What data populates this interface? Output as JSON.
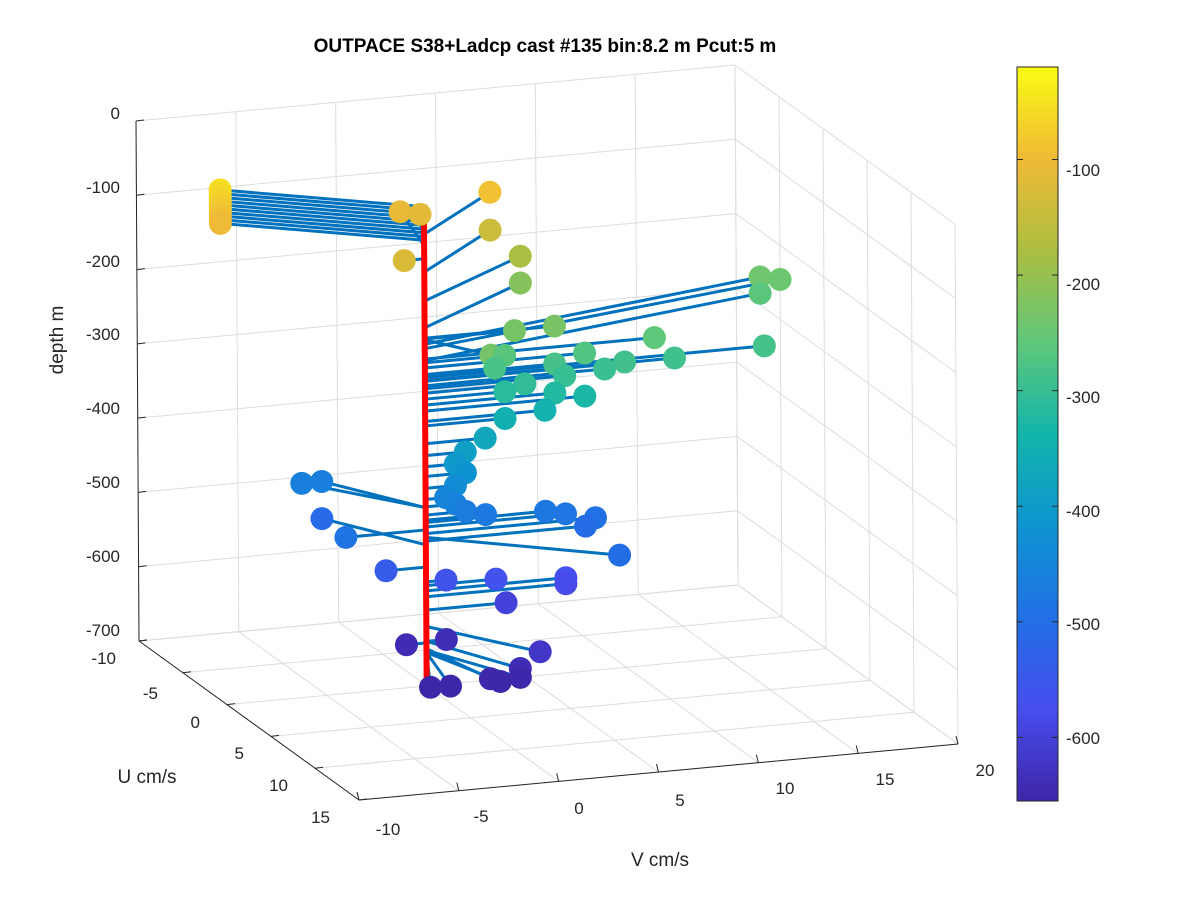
{
  "chart_data": {
    "type": "scatter",
    "title": "OUTPACE S38+Ladcp cast #135 bin:8.2 m  Pcut:5 m",
    "xlabel": "V cm/s",
    "ylabel": "U cm/s",
    "zlabel": "depth m",
    "xlim": [
      -10,
      20
    ],
    "ylim": [
      -10,
      15
    ],
    "zlim": [
      -700,
      0
    ],
    "x_ticks": [
      -10,
      -5,
      0,
      5,
      10,
      15,
      20
    ],
    "y_ticks": [
      -10,
      -5,
      0,
      5,
      10,
      15
    ],
    "z_ticks": [
      0,
      -100,
      -200,
      -300,
      -400,
      -500,
      -600,
      -700
    ],
    "x_tick_labels": [
      "-10",
      "-5",
      "0",
      "5",
      "10",
      "15",
      "20"
    ],
    "y_tick_labels": [
      "-10",
      "-5",
      "0",
      "5",
      "10",
      "15"
    ],
    "z_tick_labels": [
      "0",
      "-100",
      "-200",
      "-300",
      "-400",
      "-500",
      "-600",
      "-700"
    ],
    "grid": true,
    "view": "3d",
    "marker_colour": "depth",
    "stick_colour": "#0072bd",
    "profile_line_colour": "#ff0000",
    "profile_line_depth_range": [
      -52,
      -690
    ],
    "colorbar": {
      "range": [
        -655,
        -20
      ],
      "ticks": [
        -100,
        -200,
        -300,
        -400,
        -500,
        -600
      ],
      "tick_labels": [
        "-100",
        "-200",
        "-300",
        "-400",
        "-500",
        "-600"
      ],
      "colormap": "parula"
    },
    "points": [
      {
        "u": -5.0,
        "v": -8.0,
        "depth": -55
      },
      {
        "u": -5.0,
        "v": -8.0,
        "depth": -60
      },
      {
        "u": -5.0,
        "v": -8.0,
        "depth": -65
      },
      {
        "u": -5.0,
        "v": -8.0,
        "depth": -70
      },
      {
        "u": -5.0,
        "v": -8.0,
        "depth": -75
      },
      {
        "u": -5.0,
        "v": -8.0,
        "depth": -80
      },
      {
        "u": -5.0,
        "v": -8.0,
        "depth": -85
      },
      {
        "u": -5.0,
        "v": -8.0,
        "depth": -90
      },
      {
        "u": -5.0,
        "v": -8.0,
        "depth": -95
      },
      {
        "u": -5.0,
        "v": -8.0,
        "depth": -100
      },
      {
        "u": -5.0,
        "v": 5.5,
        "depth": -92
      },
      {
        "u": -5.0,
        "v": 1.0,
        "depth": -107
      },
      {
        "u": -5.0,
        "v": 2.0,
        "depth": -113
      },
      {
        "u": 0.0,
        "v": -1.0,
        "depth": -125
      },
      {
        "u": -5.0,
        "v": 5.5,
        "depth": -143
      },
      {
        "u": -5.0,
        "v": 7.0,
        "depth": -182
      },
      {
        "u": -5.0,
        "v": 7.0,
        "depth": -218
      },
      {
        "u": 0.0,
        "v": 4.5,
        "depth": -233
      },
      {
        "u": 0.0,
        "v": 6.5,
        "depth": -232
      },
      {
        "u": 3.0,
        "v": 2.0,
        "depth": -234
      },
      {
        "u": -5.0,
        "v": 19.0,
        "depth": -240
      },
      {
        "u": -5.0,
        "v": 20.0,
        "depth": -246
      },
      {
        "u": 0.0,
        "v": 4.0,
        "depth": -265
      },
      {
        "u": -5.0,
        "v": 19.0,
        "depth": -262
      },
      {
        "u": 0.0,
        "v": 11.5,
        "depth": -260
      },
      {
        "u": 0.0,
        "v": 8.0,
        "depth": -272
      },
      {
        "u": 0.0,
        "v": 17.0,
        "depth": -285
      },
      {
        "u": 0.0,
        "v": 12.5,
        "depth": -290
      },
      {
        "u": 0.0,
        "v": 3.5,
        "depth": -281
      },
      {
        "u": 0.0,
        "v": 6.5,
        "depth": -283
      },
      {
        "u": 0.0,
        "v": 7.0,
        "depth": -300
      },
      {
        "u": 0.0,
        "v": 9.0,
        "depth": -296
      },
      {
        "u": 0.0,
        "v": 10.0,
        "depth": -289
      },
      {
        "u": 0.0,
        "v": 5.0,
        "depth": -306
      },
      {
        "u": 0.0,
        "v": 4.0,
        "depth": -314
      },
      {
        "u": 0.0,
        "v": 6.5,
        "depth": -322
      },
      {
        "u": 0.0,
        "v": 8.0,
        "depth": -330
      },
      {
        "u": 0.0,
        "v": 6.0,
        "depth": -344
      },
      {
        "u": 0.0,
        "v": 4.0,
        "depth": -350
      },
      {
        "u": 0.0,
        "v": 3.0,
        "depth": -374
      },
      {
        "u": 0.0,
        "v": 2.0,
        "depth": -390
      },
      {
        "u": 0.0,
        "v": 1.5,
        "depth": -405
      },
      {
        "u": 0.0,
        "v": 2.0,
        "depth": -418
      },
      {
        "u": 0.0,
        "v": 1.5,
        "depth": -434
      },
      {
        "u": 0.0,
        "v": 1.0,
        "depth": -449
      },
      {
        "u": 0.0,
        "v": 1.5,
        "depth": -459
      },
      {
        "u": 0.0,
        "v": 2.0,
        "depth": -470
      },
      {
        "u": 0.0,
        "v": 3.0,
        "depth": -477
      },
      {
        "u": 0.0,
        "v": 6.0,
        "depth": -480
      },
      {
        "u": 0.0,
        "v": 7.0,
        "depth": -486
      },
      {
        "u": 0.0,
        "v": 8.5,
        "depth": -495
      },
      {
        "u": 5.0,
        "v": 7.5,
        "depth": -500
      },
      {
        "u": 0.0,
        "v": 8.0,
        "depth": -505
      },
      {
        "u": -5.0,
        "v": -4.0,
        "depth": -460
      },
      {
        "u": -5.0,
        "v": -3.0,
        "depth": -460
      },
      {
        "u": 0.0,
        "v": -4.0,
        "depth": -490
      },
      {
        "u": -5.0,
        "v": -3.0,
        "depth": -510
      },
      {
        "u": 0.0,
        "v": -2.0,
        "depth": -540
      },
      {
        "u": 0.0,
        "v": 1.0,
        "depth": -560
      },
      {
        "u": 0.0,
        "v": 3.5,
        "depth": -565
      },
      {
        "u": 0.0,
        "v": 7.0,
        "depth": -572
      },
      {
        "u": 0.0,
        "v": 7.0,
        "depth": -580
      },
      {
        "u": 0.0,
        "v": 4.0,
        "depth": -598
      },
      {
        "u": 5.0,
        "v": 3.5,
        "depth": -620
      },
      {
        "u": 5.0,
        "v": 2.5,
        "depth": -640
      },
      {
        "u": 5.0,
        "v": 2.5,
        "depth": -652
      },
      {
        "u": 5.0,
        "v": 1.5,
        "depth": -655
      },
      {
        "u": 5.0,
        "v": 1.0,
        "depth": -650
      },
      {
        "u": 5.0,
        "v": -1.0,
        "depth": -655
      },
      {
        "u": 5.0,
        "v": -2.0,
        "depth": -654
      },
      {
        "u": 0.0,
        "v": 1.0,
        "depth": -640
      },
      {
        "u": 0.0,
        "v": -1.0,
        "depth": -642
      }
    ]
  }
}
